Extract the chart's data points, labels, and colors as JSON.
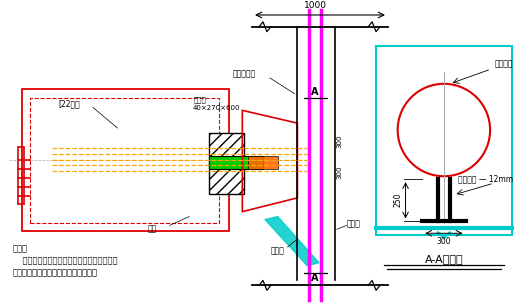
{
  "bg_color": "#ffffff",
  "red": "#dd0000",
  "magenta": "#ff00ff",
  "cyan": "#00cccc",
  "orange": "#ffa500",
  "green": "#00cc00",
  "black": "#000000",
  "gray": "#aaaaaa",
  "note_line1": "说明：",
  "note_line2": "    液压千斤顶在施工时应平衡顶压，并要保持",
  "note_line3": "千斤顶的轴力方向与支撇的中线平行。",
  "label_zhuhujin": "墓护桦主筋",
  "label_jiajiban": "加劲板\n40×270×600",
  "label_channel": "[22様钉",
  "label_gangjin": "钗筋",
  "label_niudian": "锇牛墓",
  "label_zhuhuzhu": "墓护桨",
  "label_zhichengtou": "支撇端头",
  "label_niudianb": "锇牛墓厄 — 12mm",
  "label_AA": "A-A剩面图",
  "dim_1000": "1000",
  "dim_300a": "300",
  "dim_300b": "300",
  "dim_250": "250"
}
